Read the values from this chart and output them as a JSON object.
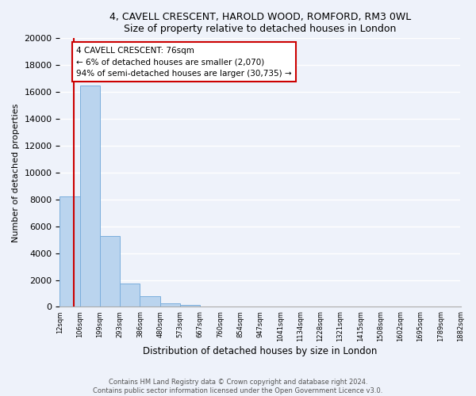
{
  "title1": "4, CAVELL CRESCENT, HAROLD WOOD, ROMFORD, RM3 0WL",
  "title2": "Size of property relative to detached houses in London",
  "xlabel": "Distribution of detached houses by size in London",
  "ylabel": "Number of detached properties",
  "bar_values": [
    8200,
    16500,
    5300,
    1750,
    800,
    280,
    150,
    0,
    0,
    0,
    0,
    0,
    0,
    0,
    0,
    0,
    0,
    0,
    0,
    0
  ],
  "categories": [
    "12sqm",
    "106sqm",
    "199sqm",
    "293sqm",
    "386sqm",
    "480sqm",
    "573sqm",
    "667sqm",
    "760sqm",
    "854sqm",
    "947sqm",
    "1041sqm",
    "1134sqm",
    "1228sqm",
    "1321sqm",
    "1415sqm",
    "1508sqm",
    "1602sqm",
    "1695sqm",
    "1789sqm",
    "1882sqm"
  ],
  "bar_color": "#bad4ee",
  "bar_edge_color": "#7aaedc",
  "annotation_line1": "4 CAVELL CRESCENT: 76sqm",
  "annotation_line2": "← 6% of detached houses are smaller (2,070)",
  "annotation_line3": "94% of semi-detached houses are larger (30,735) →",
  "annotation_box_color": "#ffffff",
  "annotation_box_edge": "#cc0000",
  "property_vline_color": "#cc0000",
  "ylim": [
    0,
    20000
  ],
  "yticks": [
    0,
    2000,
    4000,
    6000,
    8000,
    10000,
    12000,
    14000,
    16000,
    18000,
    20000
  ],
  "footer1": "Contains HM Land Registry data © Crown copyright and database right 2024.",
  "footer2": "Contains public sector information licensed under the Open Government Licence v3.0.",
  "bg_color": "#eef2fa",
  "plot_bg_color": "#eef2fa",
  "grid_color": "#ffffff"
}
